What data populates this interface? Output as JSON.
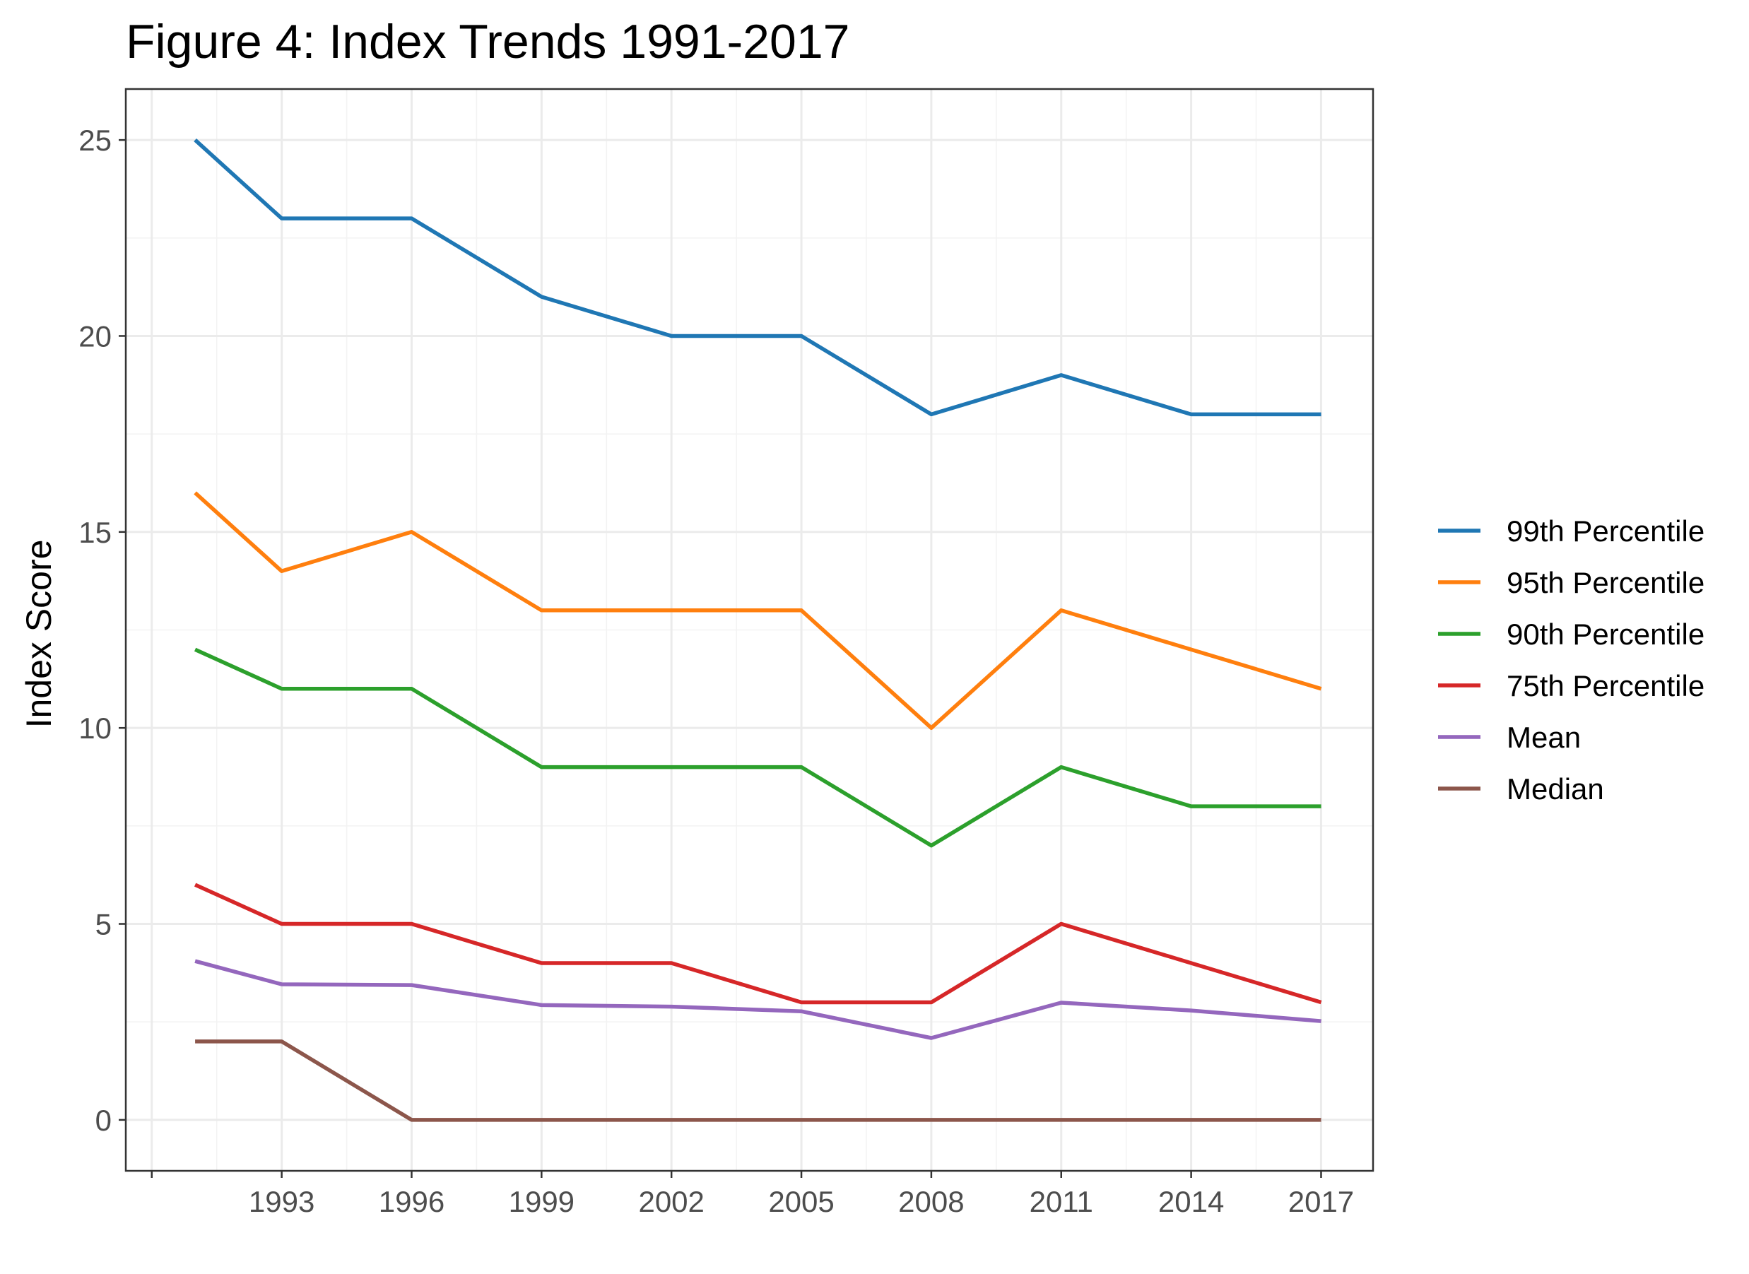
{
  "chart_data": {
    "type": "line",
    "title": "Figure 4: Index Trends 1991-2017",
    "xlabel": "",
    "ylabel": "Index Score",
    "xlim": [
      1989.4,
      2018.2
    ],
    "ylim": [
      -1.3,
      26.3
    ],
    "x_ticks": [
      1993,
      1996,
      1999,
      2002,
      2005,
      2008,
      2011,
      2014,
      2017
    ],
    "x_tick_labels": [
      "1993",
      "1996",
      "1999",
      "2002",
      "2005",
      "2008",
      "2011",
      "2014",
      "2017"
    ],
    "y_ticks": [
      0,
      5,
      10,
      15,
      20,
      25
    ],
    "y_tick_labels": [
      "0",
      "5",
      "10",
      "15",
      "20",
      "25"
    ],
    "grid": true,
    "legend_position": "right",
    "x": [
      1991,
      1993,
      1996,
      1999,
      2002,
      2005,
      2008,
      2011,
      2014,
      2017
    ],
    "series": [
      {
        "name": "99th Percentile",
        "color": "#1f77b4",
        "values": [
          25,
          23,
          23,
          21,
          20,
          20,
          18,
          19,
          18,
          18
        ]
      },
      {
        "name": "95th Percentile",
        "color": "#ff7f0e",
        "values": [
          16,
          14,
          15,
          13,
          13,
          13,
          10,
          13,
          12,
          11
        ]
      },
      {
        "name": "90th Percentile",
        "color": "#2ca02c",
        "values": [
          12,
          11,
          11,
          9,
          9,
          9,
          7,
          9,
          8,
          8
        ]
      },
      {
        "name": "75th Percentile",
        "color": "#d62728",
        "values": [
          6,
          5,
          5,
          4,
          4,
          3,
          3,
          5,
          4,
          3
        ]
      },
      {
        "name": "Mean",
        "color": "#9467bd",
        "values": [
          4.05,
          3.46,
          3.44,
          2.93,
          2.89,
          2.77,
          2.09,
          2.99,
          2.79,
          2.52
        ]
      },
      {
        "name": "Median",
        "color": "#8c564b",
        "values": [
          2,
          2,
          0,
          0,
          0,
          0,
          0,
          0,
          0,
          0
        ]
      }
    ]
  }
}
